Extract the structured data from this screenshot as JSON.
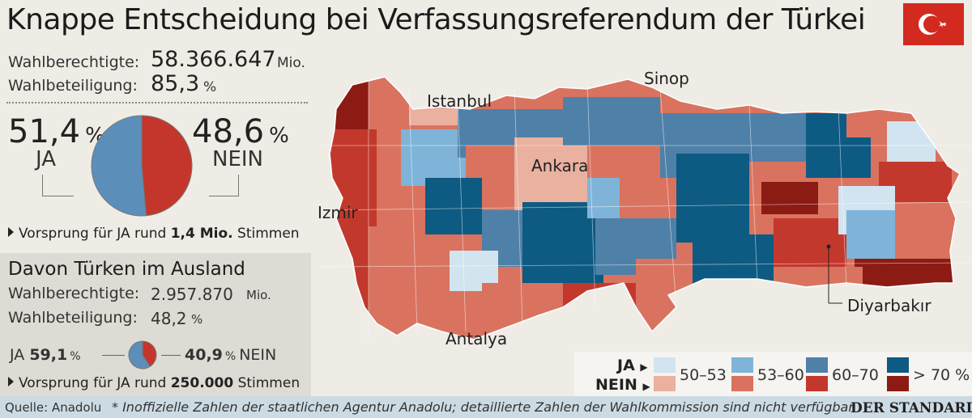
{
  "title": "Knappe Entscheidung bei Verfassungsreferendum der Türkei",
  "flag": {
    "icon": "turkey-flag-icon",
    "color": "#d32a20"
  },
  "domestic": {
    "eligible_label": "Wahlberechtigte:",
    "eligible_value": "58.366.647",
    "eligible_unit": "Mio.",
    "turnout_label": "Wahlbeteiligung:",
    "turnout_value": "85,3",
    "turnout_unit": "%",
    "ja_pct": "51,4",
    "nein_pct": "48,6",
    "pct_unit": "%",
    "asterisk": "*",
    "ja_label": "JA",
    "nein_label": "NEIN",
    "lead_prefix": "Vorsprung für JA rund",
    "lead_value": "1,4 Mio.",
    "lead_suffix": "Stimmen"
  },
  "abroad": {
    "heading": "Davon Türken im Ausland",
    "eligible_label": "Wahlberechtigte:",
    "eligible_value": "2.957.870",
    "eligible_unit": "Mio.",
    "turnout_label": "Wahlbeteiligung:",
    "turnout_value": "48,2",
    "turnout_unit": "%",
    "ja_label": "JA",
    "ja_pct": "59,1",
    "nein_pct": "40,9",
    "nein_label": "NEIN",
    "pct_unit": "%",
    "lead_prefix": "Vorsprung für JA rund",
    "lead_value": "250.000",
    "lead_suffix": "Stimmen"
  },
  "cities": {
    "istanbul": "Istanbul",
    "sinop": "Sinop",
    "ankara": "Ankara",
    "izmir": "Izmir",
    "antalya": "Antalya",
    "diyarbakir": "Diyarbakır"
  },
  "legend": {
    "ja_label": "JA",
    "nein_label": "NEIN",
    "bins": [
      "50–53",
      "53–60",
      "60–70",
      "> 70 %"
    ],
    "ja_colors": [
      "#d2e4f0",
      "#7fb4d8",
      "#4f80a8",
      "#0d5a82"
    ],
    "nein_colors": [
      "#eab0a0",
      "#d9735f",
      "#c3382d",
      "#8c1b14"
    ]
  },
  "footer": {
    "source": "Quelle: Anadolu",
    "note": "* Inoffizielle Zahlen der staatlichen Agentur Anadolu; detaillierte Zahlen der Wahlkommission sind nicht verfügbar",
    "brand": "DER STANDARD"
  },
  "colors": {
    "ja": "#5b8fb9",
    "nein": "#c4362b"
  },
  "chart_data": [
    {
      "type": "pie",
      "title": "",
      "labels": [
        "JA",
        "NEIN"
      ],
      "values": [
        51.4,
        48.6
      ],
      "colors": [
        "#5b8fb9",
        "#c4362b"
      ]
    },
    {
      "type": "pie",
      "title": "Davon Türken im Ausland",
      "labels": [
        "JA",
        "NEIN"
      ],
      "values": [
        59.1,
        40.9
      ],
      "colors": [
        "#5b8fb9",
        "#c4362b"
      ]
    }
  ]
}
